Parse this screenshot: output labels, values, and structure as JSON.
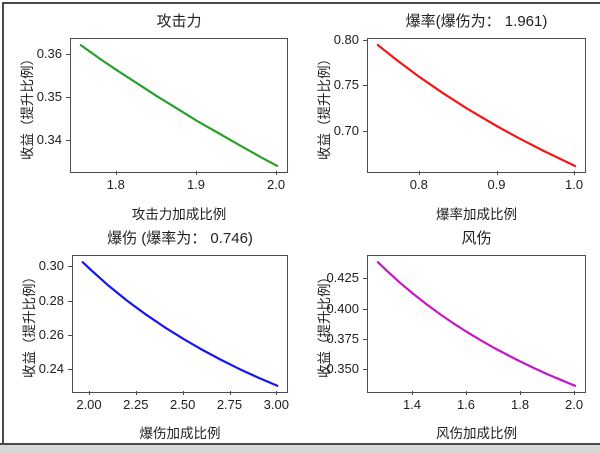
{
  "window": {
    "background": "#ffffff",
    "border_color": "#4a4a4a",
    "bottom_strip_color": "#d8d8d8"
  },
  "chart_data": [
    {
      "type": "line",
      "title": "攻击力",
      "xlabel": "攻击力加成比例",
      "ylabel": "收益（提升比例）",
      "color": "#2aa02a",
      "grid": false,
      "legend": null,
      "x": [
        1.755,
        1.78,
        1.8,
        1.82,
        1.85,
        1.88,
        1.9,
        1.92,
        1.95,
        1.98,
        2.0
      ],
      "y": [
        0.3622,
        0.3589,
        0.3564,
        0.354,
        0.3504,
        0.347,
        0.3447,
        0.3426,
        0.3394,
        0.3363,
        0.3343
      ],
      "xlim": [
        1.7428,
        2.0123
      ],
      "ylim": [
        0.3329,
        0.3636
      ],
      "xtick_values": [
        1.8,
        1.9,
        2.0
      ],
      "xtick_labels": [
        "1.8",
        "1.9",
        "2.0"
      ],
      "ytick_values": [
        0.34,
        0.35,
        0.36
      ],
      "ytick_labels": [
        "0.34",
        "0.35",
        "0.36"
      ]
    },
    {
      "type": "line",
      "title": "爆率(爆伤为： 1.961)",
      "xlabel": "爆率加成比例",
      "ylabel": "收益（提升比例）",
      "color": "#f11717",
      "grid": false,
      "legend": null,
      "x": [
        0.746,
        0.77,
        0.8,
        0.83,
        0.86,
        0.9,
        0.93,
        0.96,
        1.0
      ],
      "y": [
        0.795,
        0.7788,
        0.7599,
        0.7424,
        0.7261,
        0.7061,
        0.6922,
        0.6792,
        0.663
      ],
      "xlim": [
        0.7333,
        1.0127
      ],
      "ylim": [
        0.6564,
        0.8016
      ],
      "xtick_values": [
        0.8,
        0.9,
        1.0
      ],
      "xtick_labels": [
        "0.8",
        "0.9",
        "1.0"
      ],
      "ytick_values": [
        0.7,
        0.75,
        0.8
      ],
      "ytick_labels": [
        "0.70",
        "0.75",
        "0.80"
      ]
    },
    {
      "type": "line",
      "title": "爆伤 (爆率为： 0.746)",
      "xlabel": "爆伤加成比例",
      "ylabel": "收益（提升比例）",
      "color": "#1515ee",
      "grid": false,
      "legend": null,
      "x": [
        1.961,
        2.0,
        2.1,
        2.2,
        2.3,
        2.4,
        2.5,
        2.6,
        2.7,
        2.8,
        2.9,
        3.0
      ],
      "y": [
        0.303,
        0.299,
        0.2892,
        0.2804,
        0.2724,
        0.265,
        0.2582,
        0.2519,
        0.2461,
        0.2407,
        0.2357,
        0.231
      ],
      "xlim": [
        1.909,
        3.052
      ],
      "ylim": [
        0.2274,
        0.3066
      ],
      "xtick_values": [
        2.0,
        2.25,
        2.5,
        2.75,
        3.0
      ],
      "xtick_labels": [
        "2.00",
        "2.25",
        "2.50",
        "2.75",
        "3.00"
      ],
      "ytick_values": [
        0.24,
        0.26,
        0.28,
        0.3
      ],
      "ytick_labels": [
        "0.24",
        "0.26",
        "0.28",
        "0.30"
      ]
    },
    {
      "type": "line",
      "title": "风伤",
      "xlabel": "风伤加成比例",
      "ylabel": "收益（提升比例）",
      "color": "#c617c6",
      "grid": false,
      "legend": null,
      "x": [
        1.27,
        1.3,
        1.35,
        1.4,
        1.45,
        1.5,
        1.55,
        1.6,
        1.65,
        1.7,
        1.75,
        1.8,
        1.85,
        1.9,
        1.95,
        2.0
      ],
      "y": [
        0.439,
        0.4326,
        0.4224,
        0.4131,
        0.4043,
        0.3962,
        0.3885,
        0.3814,
        0.3746,
        0.3683,
        0.3624,
        0.3567,
        0.3514,
        0.3463,
        0.3416,
        0.337
      ],
      "xlim": [
        1.2335,
        2.0365
      ],
      "ylim": [
        0.3319,
        0.4441
      ],
      "xtick_values": [
        1.4,
        1.6,
        1.8,
        2.0
      ],
      "xtick_labels": [
        "1.4",
        "1.6",
        "1.8",
        "2.0"
      ],
      "ytick_values": [
        0.35,
        0.375,
        0.4,
        0.425
      ],
      "ytick_labels": [
        "0.350",
        "0.375",
        "0.400",
        "0.425"
      ]
    }
  ]
}
